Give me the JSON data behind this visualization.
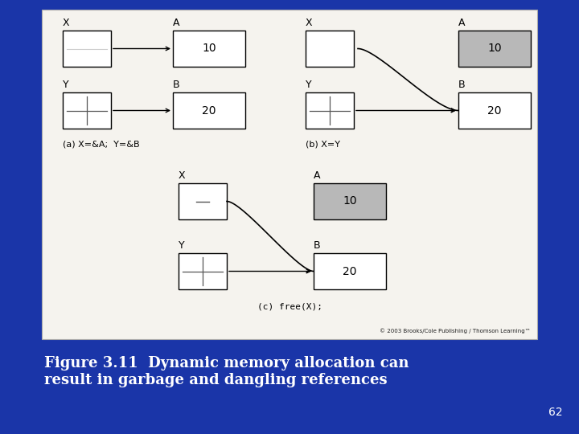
{
  "bg_color": "#1a35a8",
  "panel_color": "#f5f3ee",
  "box_white": "#ffffff",
  "box_gray": "#b8b8b8",
  "text_color": "#000000",
  "title_color": "#ffffff",
  "copyright_text": "© 2003 Brooks/Cole Publishing / Thomson Learning™",
  "figure_title": "Figure 3.11  Dynamic memory allocation can\nresult in garbage and dangling references",
  "page_num": "62",
  "caption_a": "(a) X=&A;  Y=&B",
  "caption_b": "(b) X=Y",
  "caption_c": "(c) free(X);"
}
